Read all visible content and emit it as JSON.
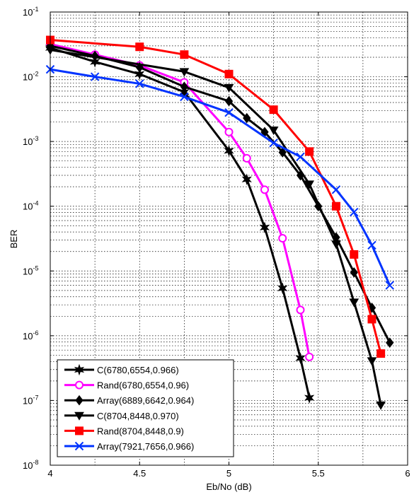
{
  "chart_data": {
    "type": "line",
    "xlabel": "Eb/No (dB)",
    "ylabel": "BER",
    "xlim": [
      4,
      6
    ],
    "ylim": [
      1e-08,
      0.1
    ],
    "y_scale": "log",
    "grid": true,
    "legend_position": "bottom-left",
    "x_ticks": [
      "4",
      "4.5",
      "5",
      "5.5",
      "6"
    ],
    "y_ticks": [
      {
        "base": "10",
        "exp": "-1"
      },
      {
        "base": "10",
        "exp": "-2"
      },
      {
        "base": "10",
        "exp": "-3"
      },
      {
        "base": "10",
        "exp": "-4"
      },
      {
        "base": "10",
        "exp": "-5"
      },
      {
        "base": "10",
        "exp": "-6"
      },
      {
        "base": "10",
        "exp": "-7"
      },
      {
        "base": "10",
        "exp": "-8"
      }
    ],
    "series": [
      {
        "name": "C(6780,6554,0.966)",
        "color": "#000000",
        "marker": "star",
        "x": [
          4,
          4.25,
          4.5,
          4.75,
          5,
          5.1,
          5.2,
          5.3,
          5.4,
          5.45
        ],
        "y": [
          0.028,
          0.017,
          0.011,
          0.0058,
          0.00072,
          0.00026,
          4.7e-05,
          5.4e-06,
          4.5e-07,
          1.1e-07
        ]
      },
      {
        "name": "Rand(6780,6554,0.96)",
        "color": "#ff00ff",
        "marker": "circle",
        "x": [
          4,
          4.25,
          4.5,
          4.75,
          5,
          5.1,
          5.2,
          5.3,
          5.4,
          5.45
        ],
        "y": [
          0.032,
          0.022,
          0.015,
          0.0082,
          0.0014,
          0.00055,
          0.00018,
          3.2e-05,
          2.5e-06,
          4.7e-07
        ]
      },
      {
        "name": "Array(6889,6642,0.964)",
        "color": "#000000",
        "marker": "diamond",
        "x": [
          4,
          4.25,
          4.5,
          4.75,
          5,
          5.1,
          5.2,
          5.3,
          5.4,
          5.5,
          5.6,
          5.7,
          5.8,
          5.9
        ],
        "y": [
          0.03,
          0.021,
          0.014,
          0.007,
          0.0042,
          0.0023,
          0.0014,
          0.00068,
          0.0003,
          0.0001,
          3.3e-05,
          9.5e-06,
          2.7e-06,
          7.8e-07
        ]
      },
      {
        "name": "C(8704,8448,0.970)",
        "color": "#000000",
        "marker": "triangle-down",
        "x": [
          4,
          4.75,
          5,
          5.25,
          5.45,
          5.6,
          5.7,
          5.8,
          5.85
        ],
        "y": [
          0.026,
          0.012,
          0.0068,
          0.0015,
          0.00022,
          2.6e-05,
          3.3e-06,
          4.1e-07,
          8.5e-08
        ]
      },
      {
        "name": "Rand(8704,8448,0.9)",
        "color": "#ff0000",
        "marker": "square",
        "x": [
          4,
          4.5,
          4.75,
          5,
          5.25,
          5.45,
          5.6,
          5.7,
          5.8,
          5.85
        ],
        "y": [
          0.037,
          0.029,
          0.022,
          0.011,
          0.0031,
          0.0007,
          0.0001,
          1.8e-05,
          1.8e-06,
          5.3e-07
        ]
      },
      {
        "name": "Array(7921,7656,0.966)",
        "color": "#0033ff",
        "marker": "x",
        "x": [
          4,
          4.25,
          4.5,
          4.75,
          5,
          5.25,
          5.4,
          5.6,
          5.7,
          5.8,
          5.9
        ],
        "y": [
          0.013,
          0.01,
          0.0078,
          0.0049,
          0.0028,
          0.00095,
          0.00058,
          0.00018,
          8.1e-05,
          2.5e-05,
          6e-06
        ]
      }
    ]
  }
}
